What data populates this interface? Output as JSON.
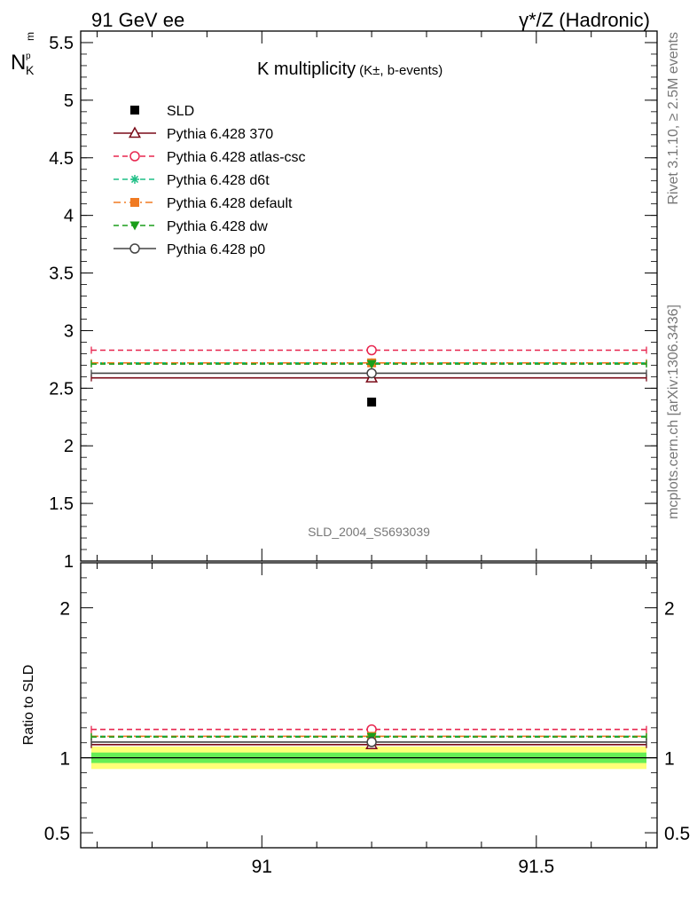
{
  "header": {
    "left": "91 GeV ee",
    "right": "γ*/Z (Hadronic)"
  },
  "side_labels": {
    "rivet": "Rivet 3.1.10, ≥ 2.5M events",
    "mcplots": "mcplots.cern.ch [arXiv:1306.3436]"
  },
  "chart_data": [
    {
      "type": "scatter",
      "title": "K multiplicity",
      "title_note": "(K±, b-events)",
      "ylabel_main": "N",
      "ylabel_sub": "K",
      "ylabel_sup": "p",
      "ylabel_sub2": "m",
      "analysis_id": "SLD_2004_S5693039",
      "xlim": [
        90.67,
        91.72
      ],
      "ylim": [
        1.0,
        5.6
      ],
      "y_ticks": [
        1,
        1.5,
        2,
        2.5,
        3,
        3.5,
        4,
        4.5,
        5,
        5.5
      ],
      "y_tick_labels": [
        "1",
        "1.5",
        "2",
        "2.5",
        "3",
        "3.5",
        "4",
        "4.5",
        "5",
        "5.5"
      ],
      "legend_position": "top-left",
      "series": [
        {
          "name": "SLD",
          "x": [
            91.2
          ],
          "y": [
            2.38
          ],
          "color": "#000000",
          "marker": "square-filled",
          "line": "none"
        },
        {
          "name": "Pythia 6.428 370",
          "x": [
            91.2
          ],
          "y": [
            2.59
          ],
          "xrange": [
            90.67,
            91.72
          ],
          "color": "#7a0b18",
          "marker": "triangle-open",
          "line": "solid"
        },
        {
          "name": "Pythia 6.428 atlas-csc",
          "x": [
            91.2
          ],
          "y": [
            2.83
          ],
          "xrange": [
            90.67,
            91.72
          ],
          "color": "#e8264f",
          "marker": "circle-open",
          "line": "dashed"
        },
        {
          "name": "Pythia 6.428 d6t",
          "x": [
            91.2
          ],
          "y": [
            2.72
          ],
          "xrange": [
            90.67,
            91.72
          ],
          "color": "#1fbf86",
          "marker": "asterisk",
          "line": "dashed"
        },
        {
          "name": "Pythia 6.428 default",
          "x": [
            91.2
          ],
          "y": [
            2.72
          ],
          "xrange": [
            90.67,
            91.72
          ],
          "color": "#f07a22",
          "marker": "square-filled",
          "line": "dashdot"
        },
        {
          "name": "Pythia 6.428 dw",
          "x": [
            91.2
          ],
          "y": [
            2.71
          ],
          "xrange": [
            90.67,
            91.72
          ],
          "color": "#1a9e1a",
          "marker": "triangle-down-filled",
          "line": "dashed"
        },
        {
          "name": "Pythia 6.428 p0",
          "x": [
            91.2
          ],
          "y": [
            2.63
          ],
          "xrange": [
            90.67,
            91.72
          ],
          "color": "#444444",
          "marker": "circle-open",
          "line": "solid"
        }
      ]
    },
    {
      "type": "scatter",
      "ylabel": "Ratio to SLD",
      "xlim": [
        90.67,
        91.72
      ],
      "ylim": [
        0.4,
        2.3
      ],
      "x_ticks": [
        91,
        91.5
      ],
      "x_tick_labels": [
        "91",
        "91.5"
      ],
      "y_ticks": [
        0.5,
        1,
        2
      ],
      "y_tick_labels": [
        "0.5",
        "1",
        "2"
      ],
      "band_inner": [
        0.965,
        1.035
      ],
      "band_outer": [
        0.925,
        1.075
      ],
      "band_inner_color": "#66ee55",
      "band_outer_color": "#ffff77",
      "series": [
        {
          "name": "Pythia 6.428 370",
          "y": 1.088,
          "color": "#7a0b18",
          "marker": "triangle-open",
          "line": "solid"
        },
        {
          "name": "Pythia 6.428 atlas-csc",
          "y": 1.189,
          "color": "#e8264f",
          "marker": "circle-open",
          "line": "dashed"
        },
        {
          "name": "Pythia 6.428 d6t",
          "y": 1.143,
          "color": "#1fbf86",
          "marker": "asterisk",
          "line": "dashed"
        },
        {
          "name": "Pythia 6.428 default",
          "y": 1.143,
          "color": "#f07a22",
          "marker": "square-filled",
          "line": "dashdot"
        },
        {
          "name": "Pythia 6.428 dw",
          "y": 1.139,
          "color": "#1a9e1a",
          "marker": "triangle-down-filled",
          "line": "dashed"
        },
        {
          "name": "Pythia 6.428 p0",
          "y": 1.105,
          "color": "#444444",
          "marker": "circle-open",
          "line": "solid"
        }
      ]
    }
  ]
}
